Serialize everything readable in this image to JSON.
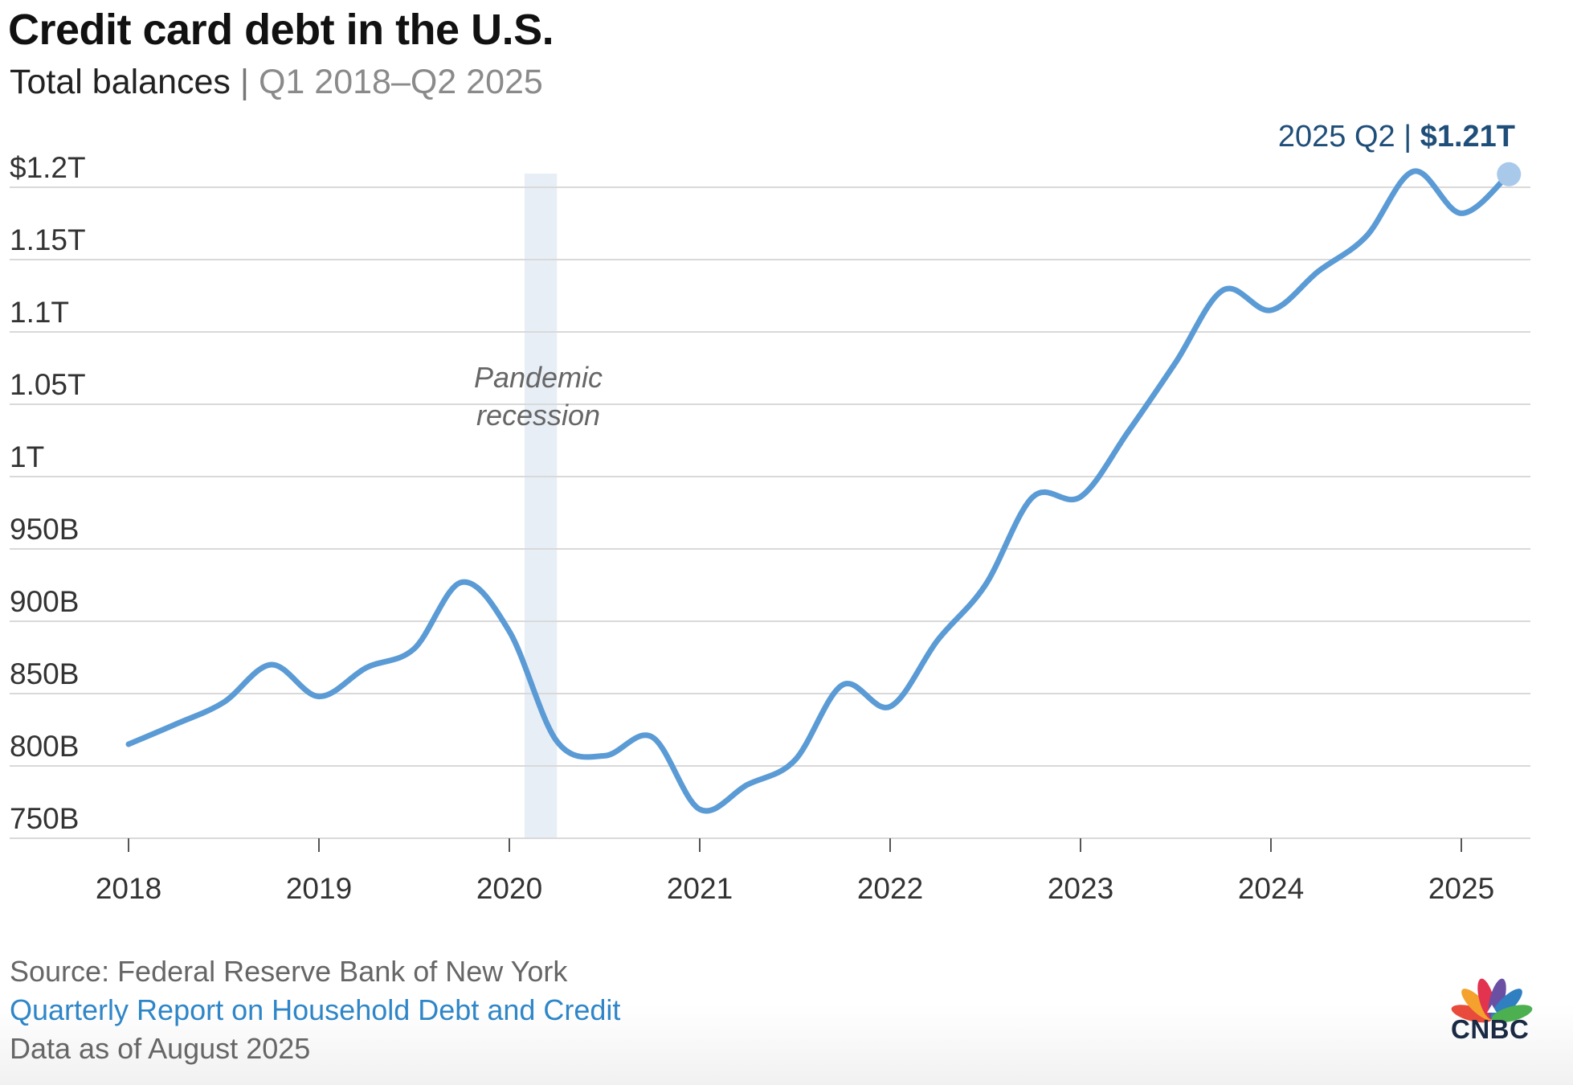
{
  "header": {
    "title": "Credit card debt in the U.S.",
    "subtitle_main": "Total balances",
    "subtitle_sep": "|",
    "subtitle_range": "Q1 2018–Q2 2025"
  },
  "chart_data": {
    "type": "line",
    "title": "Credit card debt in the U.S.",
    "subtitle": "Total balances | Q1 2018–Q2 2025",
    "xlabel": "",
    "ylabel": "",
    "ylim": [
      750,
      1210
    ],
    "xlim": [
      2018.0,
      2025.25
    ],
    "y_ticks": [
      {
        "value": 750,
        "label": "750B"
      },
      {
        "value": 800,
        "label": "800B"
      },
      {
        "value": 850,
        "label": "850B"
      },
      {
        "value": 900,
        "label": "900B"
      },
      {
        "value": 950,
        "label": "950B"
      },
      {
        "value": 1000,
        "label": "1T"
      },
      {
        "value": 1050,
        "label": "1.05T"
      },
      {
        "value": 1100,
        "label": "1.1T"
      },
      {
        "value": 1150,
        "label": "1.15T"
      },
      {
        "value": 1200,
        "label": "$1.2T"
      }
    ],
    "x_ticks": [
      {
        "value": 2018,
        "label": "2018"
      },
      {
        "value": 2019,
        "label": "2019"
      },
      {
        "value": 2020,
        "label": "2020"
      },
      {
        "value": 2021,
        "label": "2021"
      },
      {
        "value": 2022,
        "label": "2022"
      },
      {
        "value": 2023,
        "label": "2023"
      },
      {
        "value": 2024,
        "label": "2024"
      },
      {
        "value": 2025,
        "label": "2025"
      }
    ],
    "grid": true,
    "units": "billions of dollars",
    "series": [
      {
        "color": "#5b9bd5",
        "x": [
          "2018 Q1",
          "2018 Q2",
          "2018 Q3",
          "2018 Q4",
          "2019 Q1",
          "2019 Q2",
          "2019 Q3",
          "2019 Q4",
          "2020 Q1",
          "2020 Q2",
          "2020 Q3",
          "2020 Q4",
          "2021 Q1",
          "2021 Q2",
          "2021 Q3",
          "2021 Q4",
          "2022 Q1",
          "2022 Q2",
          "2022 Q3",
          "2022 Q4",
          "2023 Q1",
          "2023 Q2",
          "2023 Q3",
          "2023 Q4",
          "2024 Q1",
          "2024 Q2",
          "2024 Q3",
          "2024 Q4",
          "2025 Q1",
          "2025 Q2"
        ],
        "values": [
          815,
          829,
          844,
          870,
          848,
          868,
          881,
          927,
          893,
          817,
          807,
          820,
          770,
          787,
          804,
          856,
          841,
          887,
          925,
          986,
          986,
          1031,
          1079,
          1129,
          1115,
          1142,
          1166,
          1211,
          1182,
          1209
        ]
      }
    ],
    "annotations": [
      {
        "type": "shaded_region",
        "x_start": 2020.08,
        "x_end": 2020.25,
        "label": "Pandemic recession"
      },
      {
        "type": "end_label",
        "x": 2025.25,
        "y": 1209,
        "text_prefix": "2025 Q2 |",
        "text_value": "$1.21T"
      }
    ]
  },
  "annotation_pandemic": {
    "line1": "Pandemic",
    "line2": "recession"
  },
  "end_label": {
    "prefix": "2025 Q2 |",
    "value": "$1.21T"
  },
  "footer": {
    "source": "Source: Federal Reserve Bank of New York",
    "report_link": "Quarterly Report on Household Debt and Credit",
    "data_date": "Data as of August 2025"
  },
  "logo": {
    "text": "CNBC",
    "icon": "nbc-peacock-icon"
  },
  "colors": {
    "line": "#5b9bd5",
    "recession_band": "#e8eef6",
    "end_label": "#1f4e79",
    "link": "#2e86c8",
    "grid": "#d9d9d9"
  }
}
